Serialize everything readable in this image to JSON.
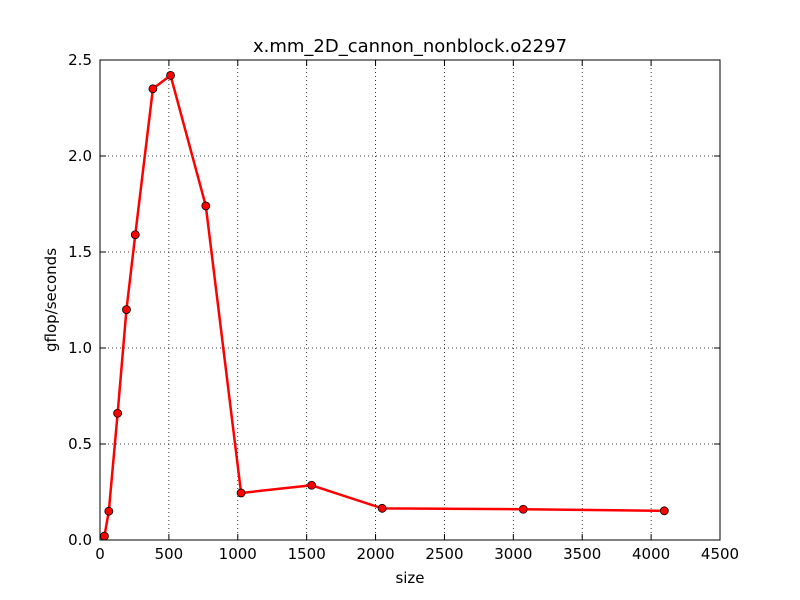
{
  "chart_data": {
    "type": "line",
    "title": "x.mm_2D_cannon_nonblock.o2297",
    "xlabel": "size",
    "ylabel": "gflop/seconds",
    "xlim": [
      0,
      4500
    ],
    "ylim": [
      0,
      2.5
    ],
    "xticks": [
      0,
      500,
      1000,
      1500,
      2000,
      2500,
      3000,
      3500,
      4000,
      4500
    ],
    "yticks": [
      0.0,
      0.5,
      1.0,
      1.5,
      2.0,
      2.5
    ],
    "xtick_labels": [
      "0",
      "500",
      "1000",
      "1500",
      "2000",
      "2500",
      "3000",
      "3500",
      "4000",
      "4500"
    ],
    "ytick_labels": [
      "0.0",
      "0.5",
      "1.0",
      "1.5",
      "2.0",
      "2.5"
    ],
    "grid": true,
    "series": [
      {
        "color": "#ff0000",
        "marker": "circle",
        "x": [
          32,
          64,
          128,
          192,
          256,
          384,
          512,
          768,
          1024,
          1536,
          2048,
          3072,
          4096
        ],
        "y": [
          0.02,
          0.15,
          0.66,
          1.2,
          1.59,
          2.35,
          2.42,
          1.74,
          0.245,
          0.285,
          0.165,
          0.16,
          0.152
        ]
      }
    ]
  }
}
